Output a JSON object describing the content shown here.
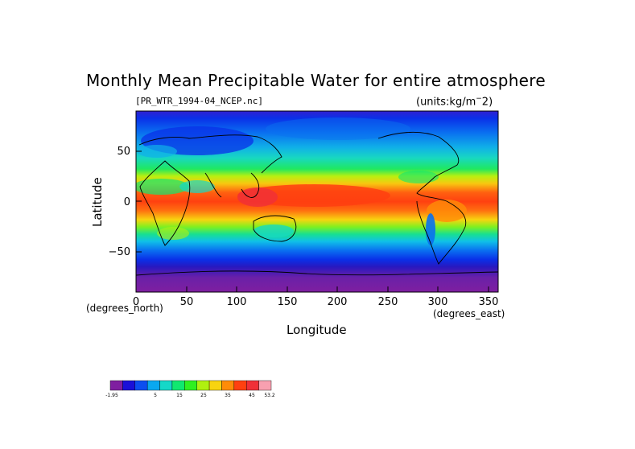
{
  "chart_data": {
    "type": "heatmap",
    "title": "Monthly Mean Precipitable Water for entire atmosphere",
    "subtitle": "[PR_WTR_1994-04_NCEP.nc]",
    "units_label": "(units:kg/m^2)",
    "xlabel": "Longitude",
    "ylabel": "Latitude",
    "x_unit_label": "(degrees_east)",
    "y_unit_label": "(degrees_north)",
    "xlim": [
      0,
      360
    ],
    "ylim": [
      -90,
      90
    ],
    "x_ticks": [
      "0",
      "50",
      "100",
      "150",
      "200",
      "250",
      "300",
      "350"
    ],
    "y_ticks": [
      "50",
      "0",
      "−50"
    ],
    "colorbar": {
      "labels": [
        "-1.95",
        "5",
        "15",
        "25",
        "35",
        "45",
        "53.2"
      ],
      "colors": [
        "#7f1fa0",
        "#1a10d8",
        "#0c4ef0",
        "#0aa8f0",
        "#15d8c8",
        "#10e870",
        "#30f020",
        "#b0f010",
        "#f8d410",
        "#ff8c08",
        "#ff4010",
        "#f03038",
        "#f8a0b0"
      ]
    },
    "approx_field": {
      "description_levels": "precipitable water bands by latitude",
      "bands": [
        {
          "lat_from": 90,
          "lat_to": 70,
          "value": 5
        },
        {
          "lat_from": 70,
          "lat_to": 55,
          "value": 10
        },
        {
          "lat_from": 55,
          "lat_to": 40,
          "value": 15
        },
        {
          "lat_from": 40,
          "lat_to": 25,
          "value": 25
        },
        {
          "lat_from": 25,
          "lat_to": 10,
          "value": 38
        },
        {
          "lat_from": 10,
          "lat_to": -10,
          "value": 48
        },
        {
          "lat_from": -10,
          "lat_to": -25,
          "value": 35
        },
        {
          "lat_from": -25,
          "lat_to": -40,
          "value": 22
        },
        {
          "lat_from": -40,
          "lat_to": -55,
          "value": 12
        },
        {
          "lat_from": -55,
          "lat_to": -70,
          "value": 6
        },
        {
          "lat_from": -70,
          "lat_to": -90,
          "value": 0
        }
      ]
    }
  }
}
